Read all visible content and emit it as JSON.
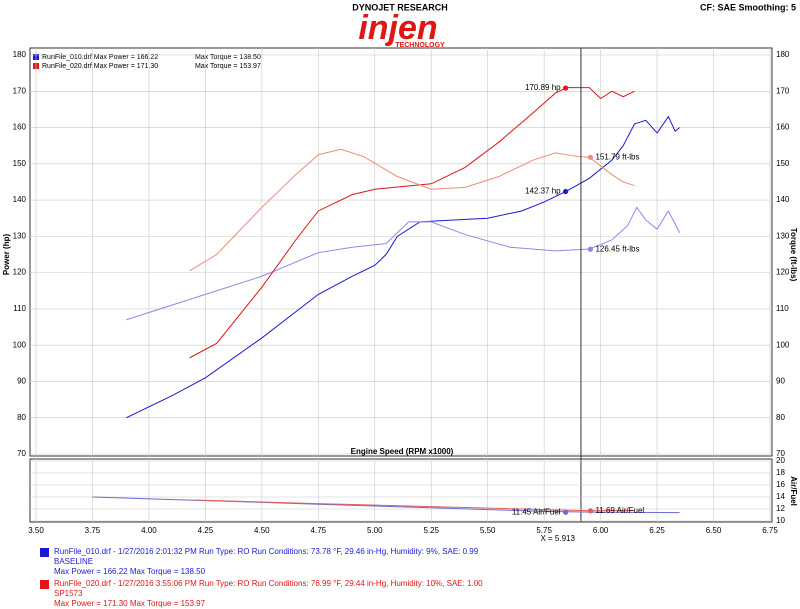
{
  "header": {
    "company": "DYNOJET RESEARCH",
    "logo": "injen",
    "logo_sub": "TECHNOLOGY",
    "settings": "CF: SAE  Smoothing: 5"
  },
  "legend": [
    {
      "file": "RunFile_010.drf Max Power = 166.22",
      "torque": "Max Torque = 138.50",
      "color": "#1a1ad6"
    },
    {
      "file": "RunFile_020.drf Max Power = 171.30",
      "torque": "Max Torque = 153.97",
      "color": "#e01515"
    }
  ],
  "chart_data": [
    {
      "type": "line",
      "xlabel": "Engine Speed (RPM x1000)",
      "ylabel": "Power (hp)",
      "y2label": "Torque (ft-lbs)",
      "xlim": [
        3.5,
        6.75
      ],
      "ylim": [
        70,
        180
      ],
      "y2lim": [
        70,
        180
      ],
      "grid": true,
      "xticks": [
        {
          "value": 3.5,
          "label": "3.50"
        },
        {
          "value": 3.75,
          "label": "3.75"
        },
        {
          "value": 4,
          "label": "4.00"
        },
        {
          "value": 4.25,
          "label": "4.25"
        },
        {
          "value": 4.5,
          "label": "4.50"
        },
        {
          "value": 4.75,
          "label": "4.75"
        },
        {
          "value": 5,
          "label": "5.00"
        },
        {
          "value": 5.25,
          "label": "5.25"
        },
        {
          "value": 5.5,
          "label": "5.50"
        },
        {
          "value": 5.75,
          "label": "5.75"
        },
        {
          "value": 6,
          "label": "6.00"
        },
        {
          "value": 6.25,
          "label": "6.25"
        },
        {
          "value": 6.5,
          "label": "6.50"
        },
        {
          "value": 6.75,
          "label": "6.75"
        }
      ],
      "yticks": [
        70,
        80,
        90,
        100,
        110,
        120,
        130,
        140,
        150,
        160,
        170,
        180
      ],
      "y2ticks": [
        70,
        80,
        90,
        100,
        110,
        120,
        130,
        140,
        150,
        160,
        170,
        180
      ],
      "series": [
        {
          "color": "#1a1ad6",
          "x": [
            3.9,
            4.1,
            4.25,
            4.5,
            4.75,
            4.9,
            5.0,
            5.05,
            5.1,
            5.2,
            5.35,
            5.5,
            5.65,
            5.75,
            5.85,
            5.95,
            6.05,
            6.1,
            6.15,
            6.2,
            6.25,
            6.3,
            6.33,
            6.35
          ],
          "values": [
            80,
            86,
            91,
            102,
            114,
            119,
            122,
            125,
            130,
            134,
            134.5,
            135,
            137,
            139.5,
            142.5,
            146,
            151,
            155,
            161,
            162,
            158.5,
            163,
            159,
            160
          ]
        },
        {
          "color": "#8a8ae8",
          "axis": "y2",
          "x": [
            3.9,
            4.1,
            4.25,
            4.5,
            4.75,
            4.9,
            5.05,
            5.1,
            5.15,
            5.25,
            5.4,
            5.6,
            5.8,
            5.95,
            6.05,
            6.12,
            6.16,
            6.2,
            6.25,
            6.3,
            6.35
          ],
          "values": [
            107,
            111,
            114,
            119,
            125.5,
            127,
            128,
            131,
            134,
            134,
            130.5,
            127,
            126,
            126.5,
            129,
            133,
            138,
            134.5,
            132,
            137,
            131
          ]
        },
        {
          "color": "#e01515",
          "x": [
            4.18,
            4.3,
            4.5,
            4.65,
            4.75,
            4.9,
            5.0,
            5.25,
            5.4,
            5.55,
            5.7,
            5.8,
            5.85,
            5.95,
            6.0,
            6.05,
            6.1,
            6.15
          ],
          "values": [
            96.5,
            100.5,
            116,
            129,
            137,
            141.5,
            143,
            144.5,
            149,
            156,
            164,
            169.5,
            171,
            171,
            168,
            170,
            168.5,
            170
          ]
        },
        {
          "color": "#f08a78",
          "axis": "y2",
          "x": [
            4.18,
            4.3,
            4.5,
            4.65,
            4.75,
            4.85,
            4.95,
            5.1,
            5.25,
            5.4,
            5.55,
            5.7,
            5.8,
            5.9,
            5.95,
            6.05,
            6.1,
            6.15
          ],
          "values": [
            120.5,
            125,
            138,
            147,
            152.5,
            154,
            152,
            146.5,
            143,
            143.5,
            146.5,
            151,
            153,
            152,
            151.8,
            147,
            145,
            144
          ]
        }
      ],
      "markers": [
        {
          "label": "170.89 hp",
          "x": 5.845,
          "value": 170.89,
          "color": "#e01515",
          "label_position": "left"
        },
        {
          "label": "151.79 ft-lbs",
          "x": 5.955,
          "value": 151.79,
          "color": "#f08a78",
          "label_position": "right"
        },
        {
          "label": "142.37 hp",
          "x": 5.845,
          "value": 142.37,
          "color": "#1a1ad6",
          "label_position": "left"
        },
        {
          "label": "126.45 ft-lbs",
          "x": 5.955,
          "value": 126.45,
          "color": "#8a8ae8",
          "label_position": "right"
        }
      ],
      "cursor": {
        "x": 5.913,
        "label": "X = 5.913"
      }
    },
    {
      "type": "line",
      "ylabel": "Air/Fuel",
      "xlim": [
        3.5,
        6.75
      ],
      "ylim": [
        10,
        20
      ],
      "yticks": [
        10,
        12,
        14,
        16,
        18,
        20
      ],
      "grid": true,
      "series": [
        {
          "color": "#6a6ad8",
          "x": [
            3.75,
            4.25,
            4.75,
            5.25,
            5.75,
            6.0,
            6.35
          ],
          "values": [
            14,
            13.4,
            12.8,
            12.2,
            11.6,
            11.45,
            11.4
          ]
        },
        {
          "color": "#e06060",
          "x": [
            4.2,
            4.75,
            5.25,
            5.75,
            5.95,
            6.15
          ],
          "values": [
            13.5,
            12.9,
            12.4,
            11.9,
            11.7,
            11.75
          ]
        }
      ],
      "markers": [
        {
          "label": "11.45 Air/Fuel",
          "x": 5.845,
          "value": 11.45,
          "color": "#6a6ad8",
          "label_position": "left"
        },
        {
          "label": "11.69 Air/Fuel",
          "x": 5.955,
          "value": 11.69,
          "color": "#e06060",
          "label_position": "right"
        }
      ]
    }
  ],
  "run_info": [
    {
      "line1": "RunFile_010.drf - 1/27/2016 2:01:32 PM  Run Type: RO  Run Conditions: 73.78 °F, 29.46 in-Hg,  Humidity:  9%, SAE: 0.99",
      "line2": "BASELINE",
      "line3": "Max Power = 166.22  Max Torque = 138.50",
      "color": "#1a1ad6"
    },
    {
      "line1": "RunFile_020.drf - 1/27/2016 3:55:06 PM  Run Type: RO  Run Conditions: 76.99 °F, 29.44 in-Hg,  Humidity:  10%, SAE: 1.00",
      "line2": "SP1573",
      "line3": "Max Power = 171.30  Max Torque = 153.97",
      "color": "#e01515"
    }
  ]
}
